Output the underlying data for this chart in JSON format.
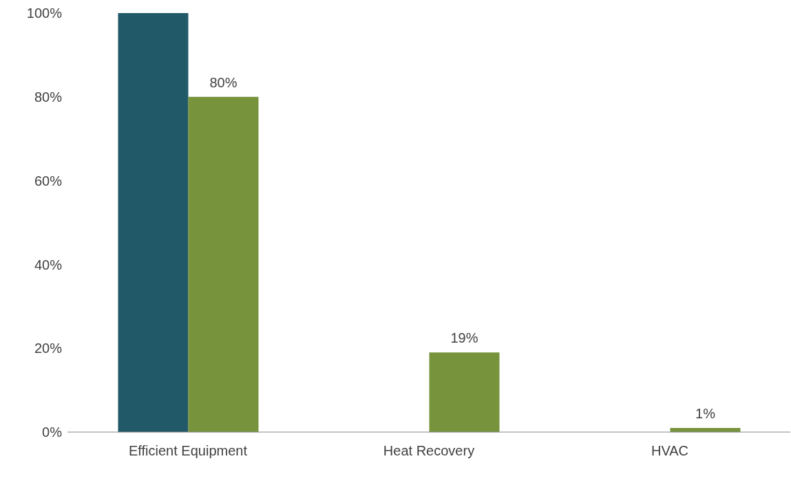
{
  "chart_data": {
    "type": "bar",
    "categories": [
      "Efficient Equipment",
      "Heat Recovery",
      "HVAC"
    ],
    "series": [
      {
        "color": "#215968",
        "values": [
          100,
          null,
          null
        ]
      },
      {
        "color": "#77933c",
        "values": [
          80,
          19,
          1
        ],
        "value_labels": [
          "80%",
          "19%",
          "1%"
        ]
      }
    ],
    "ylim": [
      0,
      100
    ],
    "yticks": [
      {
        "value": 0,
        "label": "0%"
      },
      {
        "value": 20,
        "label": "20%"
      },
      {
        "value": 40,
        "label": "40%"
      },
      {
        "value": 60,
        "label": "60%"
      },
      {
        "value": 80,
        "label": "80%"
      },
      {
        "value": 100,
        "label": "100%"
      }
    ],
    "grid": false,
    "legend": false
  }
}
